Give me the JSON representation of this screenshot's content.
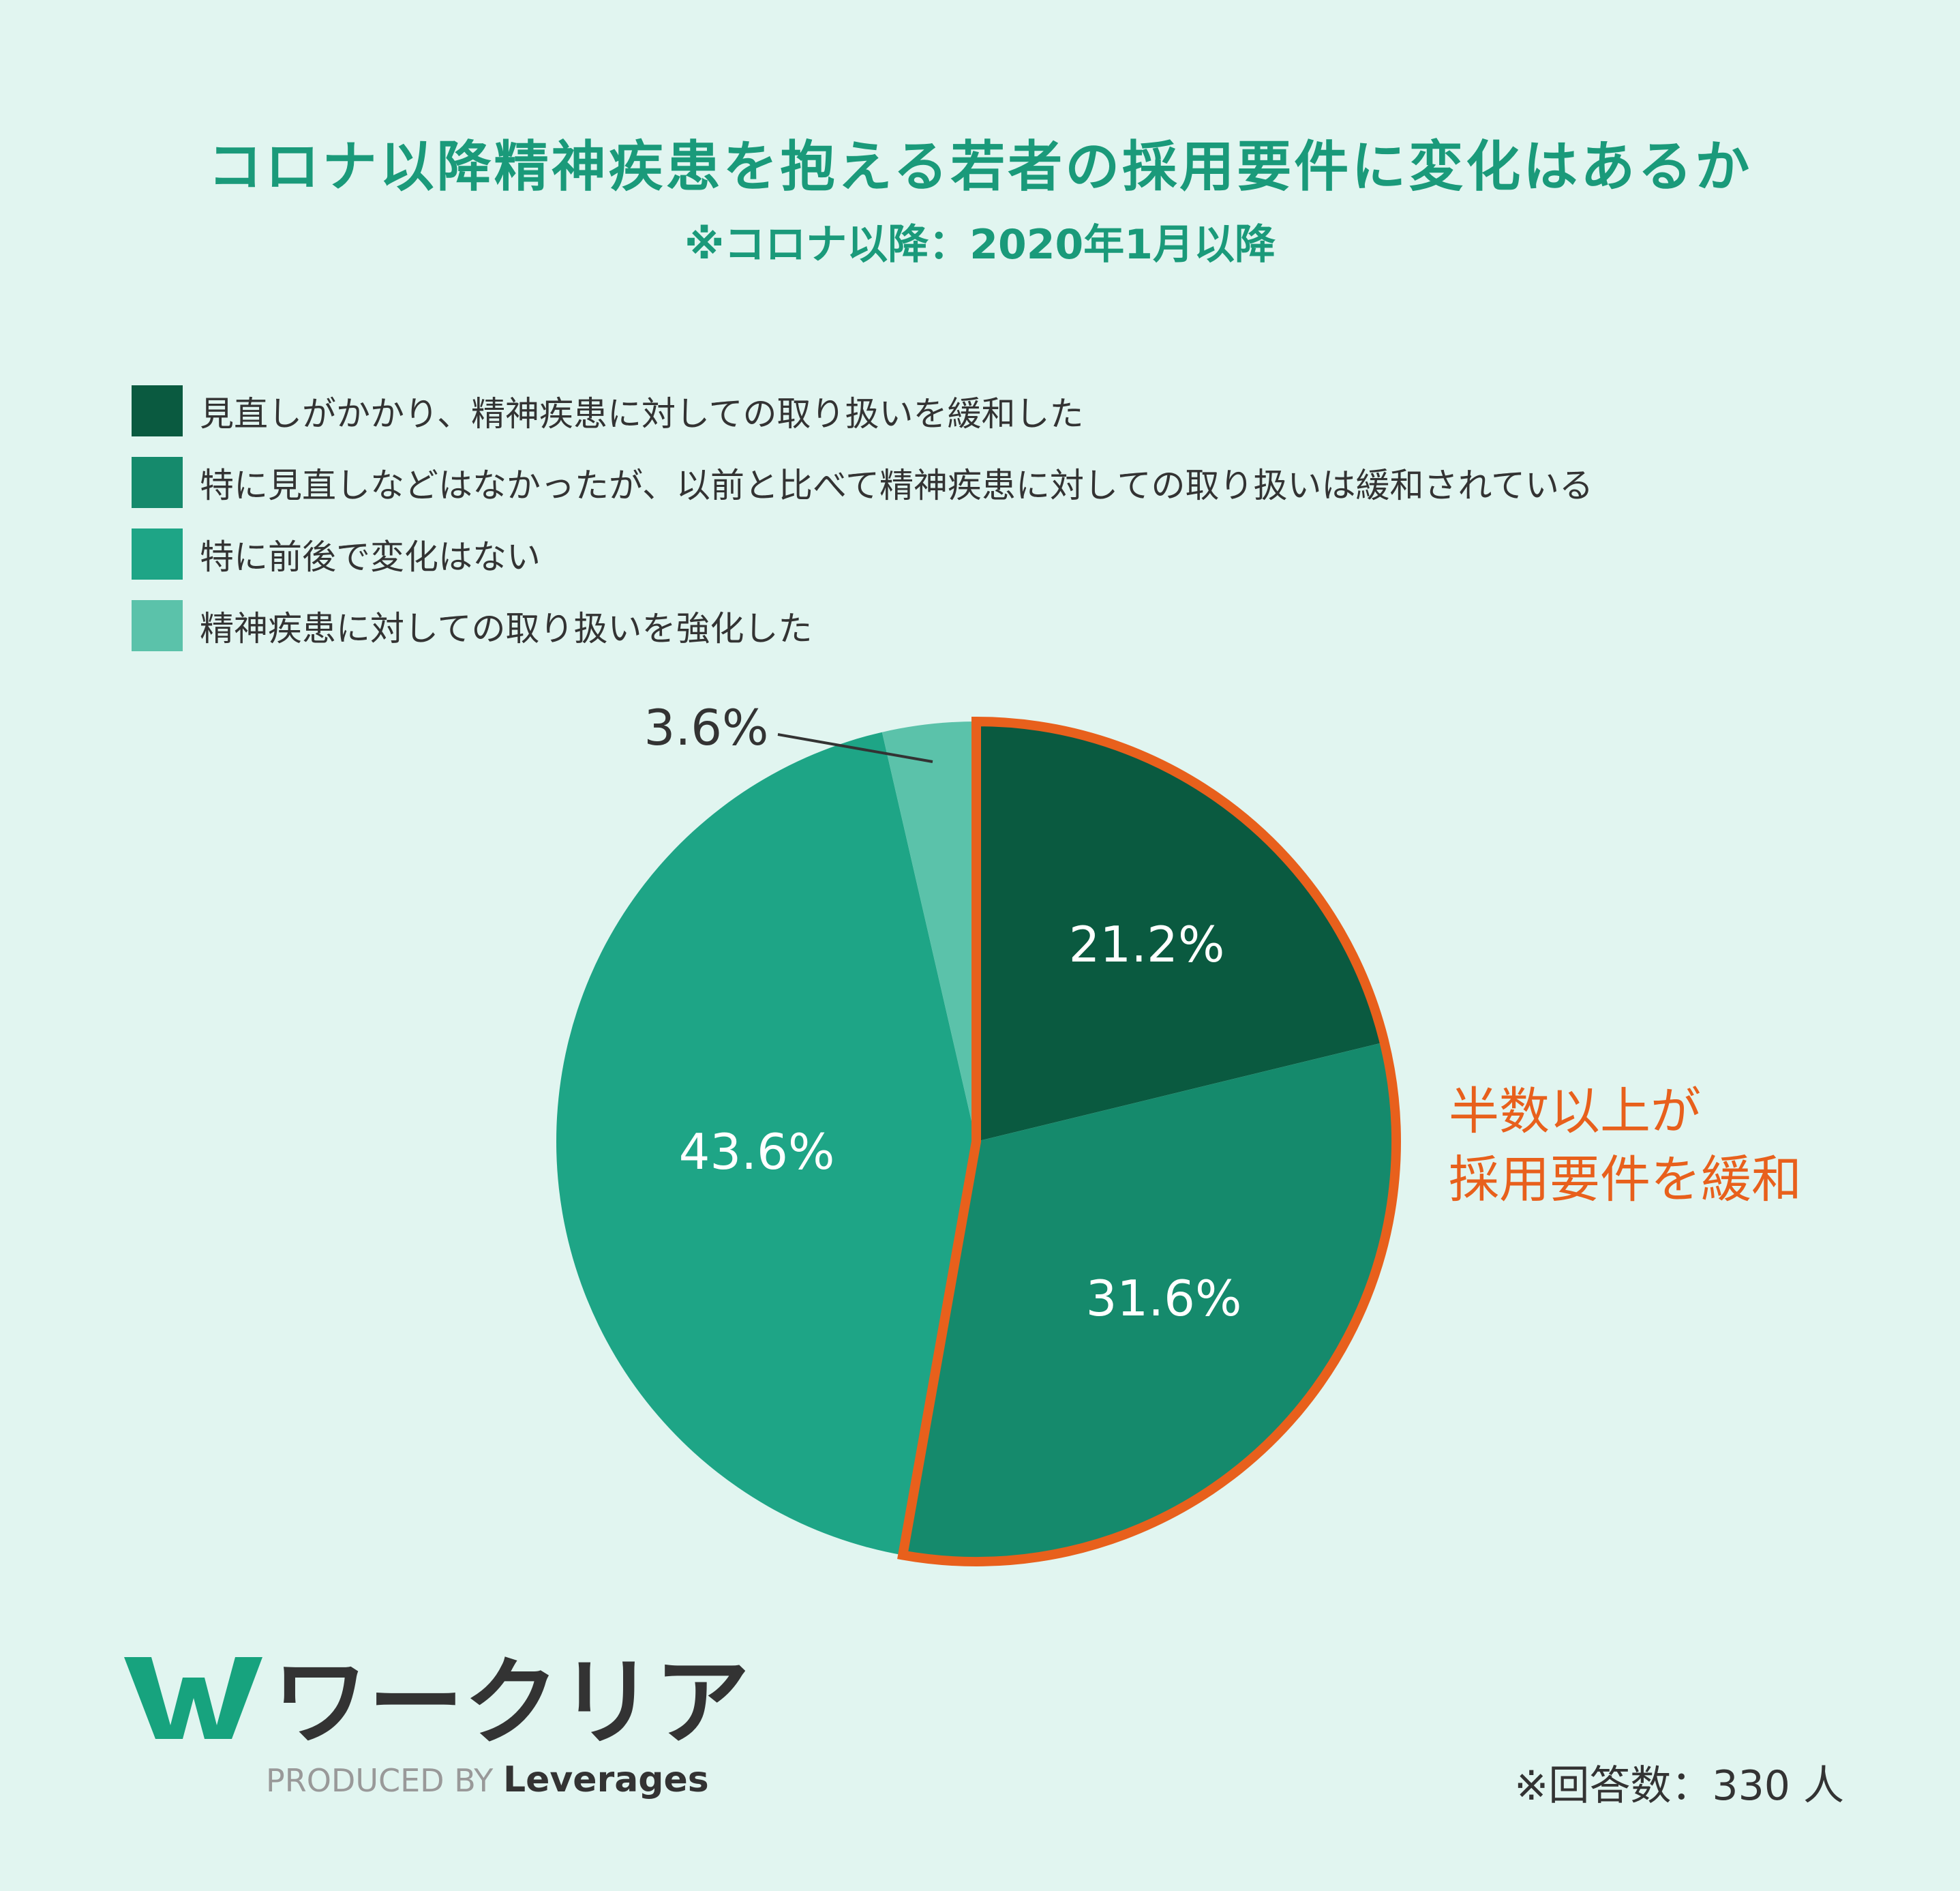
{
  "header": {
    "title": "コロナ以降精神疾患を抱える若者の採用要件に変化はあるか",
    "subtitle": "※コロナ以降：2020年1月以降"
  },
  "chart_data": {
    "type": "pie",
    "start": "12 o'clock, clockwise",
    "categories": [
      "見直しがかかり、精神疾患に対しての取り扱いを緩和した",
      "特に見直しなどはなかったが、以前と比べて精神疾患に対しての取り扱いは緩和されている",
      "特に前後で変化はない",
      "精神疾患に対しての取り扱いを強化した"
    ],
    "values": [
      21.2,
      31.6,
      43.6,
      3.6
    ],
    "labels": [
      "21.2%",
      "31.6%",
      "43.6%",
      "3.6%"
    ],
    "colors": [
      "#0a5a40",
      "#158a6c",
      "#1ea586",
      "#5bc2aa"
    ],
    "legend_position": "top-left",
    "highlight": {
      "slices": [
        0,
        1
      ],
      "color": "#e8601c",
      "annotation": [
        "半数以上が",
        "採用要件を緩和"
      ]
    }
  },
  "footer": {
    "logo_text": "ワークリア",
    "produced_by": "PRODUCED BY",
    "brand": "Leverages",
    "note": "※回答数：330 人"
  }
}
